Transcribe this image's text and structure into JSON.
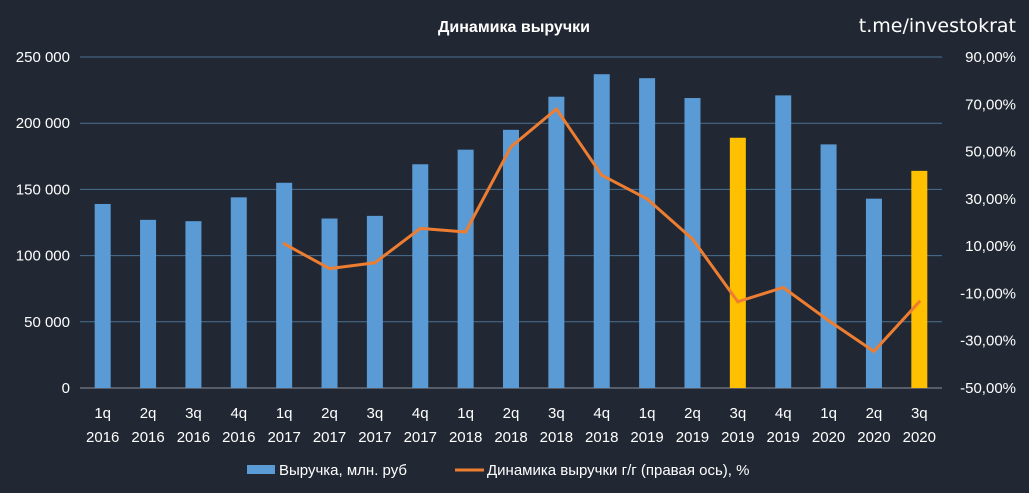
{
  "watermark": "t.me/investokrat",
  "chart_data": {
    "type": "bar",
    "title": "Динамика выручки",
    "categories": [
      [
        "1q",
        "2016"
      ],
      [
        "2q",
        "2016"
      ],
      [
        "3q",
        "2016"
      ],
      [
        "4q",
        "2016"
      ],
      [
        "1q",
        "2017"
      ],
      [
        "2q",
        "2017"
      ],
      [
        "3q",
        "2017"
      ],
      [
        "4q",
        "2017"
      ],
      [
        "1q",
        "2018"
      ],
      [
        "2q",
        "2018"
      ],
      [
        "3q",
        "2018"
      ],
      [
        "4q",
        "2018"
      ],
      [
        "1q",
        "2019"
      ],
      [
        "2q",
        "2019"
      ],
      [
        "3q",
        "2019"
      ],
      [
        "4q",
        "2019"
      ],
      [
        "1q",
        "2020"
      ],
      [
        "2q",
        "2020"
      ],
      [
        "3q",
        "2020"
      ]
    ],
    "series": [
      {
        "name": "Выручка, млн. руб",
        "kind": "bar",
        "axis": "left",
        "color": "#5b9bd5",
        "highlight_color": "#ffc000",
        "highlight_indices": [
          14,
          18
        ],
        "values": [
          139000,
          127000,
          126000,
          144000,
          155000,
          128000,
          130000,
          169000,
          180000,
          195000,
          220000,
          237000,
          234000,
          219000,
          189000,
          221000,
          184000,
          143000,
          164000
        ]
      },
      {
        "name": "Динамика выручки г/г (правая ось), %",
        "kind": "line",
        "axis": "right",
        "color": "#ed7d31",
        "values": [
          null,
          null,
          null,
          null,
          11.0,
          0.5,
          3.0,
          17.5,
          16.0,
          52.0,
          68.0,
          40.0,
          30.0,
          13.0,
          -13.5,
          -7.5,
          -21.5,
          -34.5,
          -13.5
        ]
      }
    ],
    "y_left": {
      "min": 0,
      "max": 250000,
      "step": 50000,
      "tick_labels": [
        "0",
        "50 000",
        "100 000",
        "150 000",
        "200 000",
        "250 000"
      ]
    },
    "y_right": {
      "min": -50,
      "max": 90,
      "step": 20,
      "tick_labels": [
        "-50,00%",
        "-30,00%",
        "-10,00%",
        "10,00%",
        "30,00%",
        "50,00%",
        "70,00%",
        "90,00%"
      ]
    },
    "grid": true,
    "legend": {
      "position": "bottom",
      "items": [
        "Выручка, млн. руб",
        "Динамика выручки г/г (правая ось), %"
      ]
    }
  }
}
